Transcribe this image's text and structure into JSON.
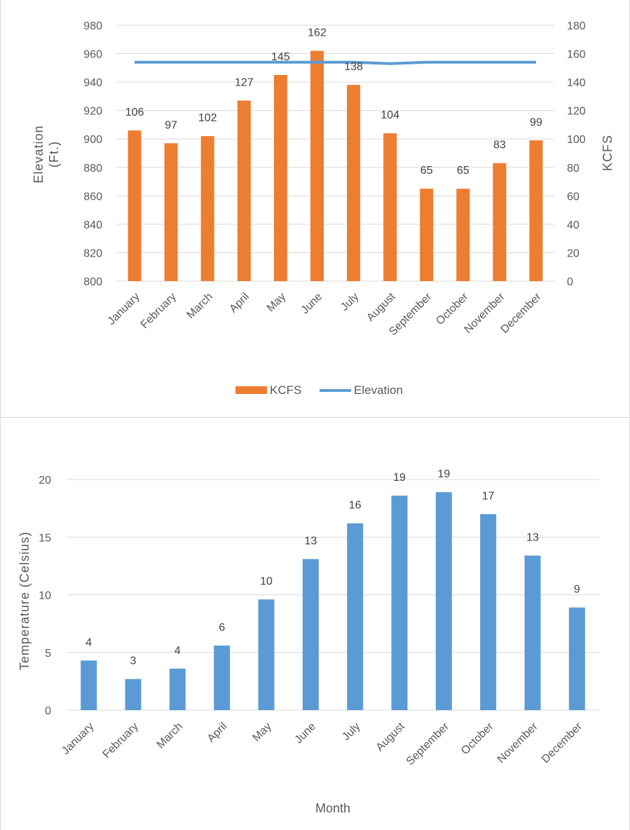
{
  "chart_data": [
    {
      "type": "bar",
      "categories": [
        "January",
        "February",
        "March",
        "April",
        "May",
        "June",
        "July",
        "August",
        "September",
        "October",
        "November",
        "December"
      ],
      "series": [
        {
          "name": "KCFS",
          "type": "bar",
          "axis": "right",
          "values": [
            106,
            97,
            102,
            127,
            145,
            162,
            138,
            104,
            65,
            65,
            83,
            99
          ],
          "color": "#ED7D31"
        },
        {
          "name": "Elevation",
          "type": "line",
          "axis": "left",
          "values": [
            954,
            954,
            954,
            954,
            954,
            954,
            954,
            953,
            954,
            954,
            954,
            954
          ],
          "color": "#5B9BD5"
        }
      ],
      "ylabel": "Elevation (Ft.)",
      "y2label": "KCFS",
      "ylim": [
        800,
        980
      ],
      "y2lim": [
        0,
        180
      ],
      "yticks": [
        "800",
        "820",
        "840",
        "860",
        "880",
        "900",
        "920",
        "940",
        "960",
        "980"
      ],
      "y2ticks": [
        "0",
        "20",
        "40",
        "60",
        "80",
        "100",
        "120",
        "140",
        "160",
        "180"
      ],
      "data_labels": [
        "106",
        "97",
        "102",
        "127",
        "145",
        "162",
        "138",
        "104",
        "65",
        "65",
        "83",
        "99"
      ],
      "grid": true,
      "legend": "bottom"
    },
    {
      "type": "bar",
      "categories": [
        "January",
        "February",
        "March",
        "April",
        "May",
        "June",
        "July",
        "August",
        "September",
        "October",
        "November",
        "December"
      ],
      "series": [
        {
          "values": [
            4.3,
            2.7,
            3.6,
            5.6,
            9.6,
            13.1,
            16.2,
            18.6,
            18.9,
            17.0,
            13.4,
            8.9
          ],
          "color": "#5B9BD5"
        }
      ],
      "data_labels": [
        "4",
        "3",
        "4",
        "6",
        "10",
        "13",
        "16",
        "19",
        "19",
        "17",
        "13",
        "9"
      ],
      "xlabel": "Month",
      "ylabel": "Temperature (Celsius)",
      "ylim": [
        0,
        20
      ],
      "yticks": [
        "0",
        "5",
        "10",
        "15",
        "20"
      ],
      "grid": true,
      "legend": "none"
    }
  ]
}
